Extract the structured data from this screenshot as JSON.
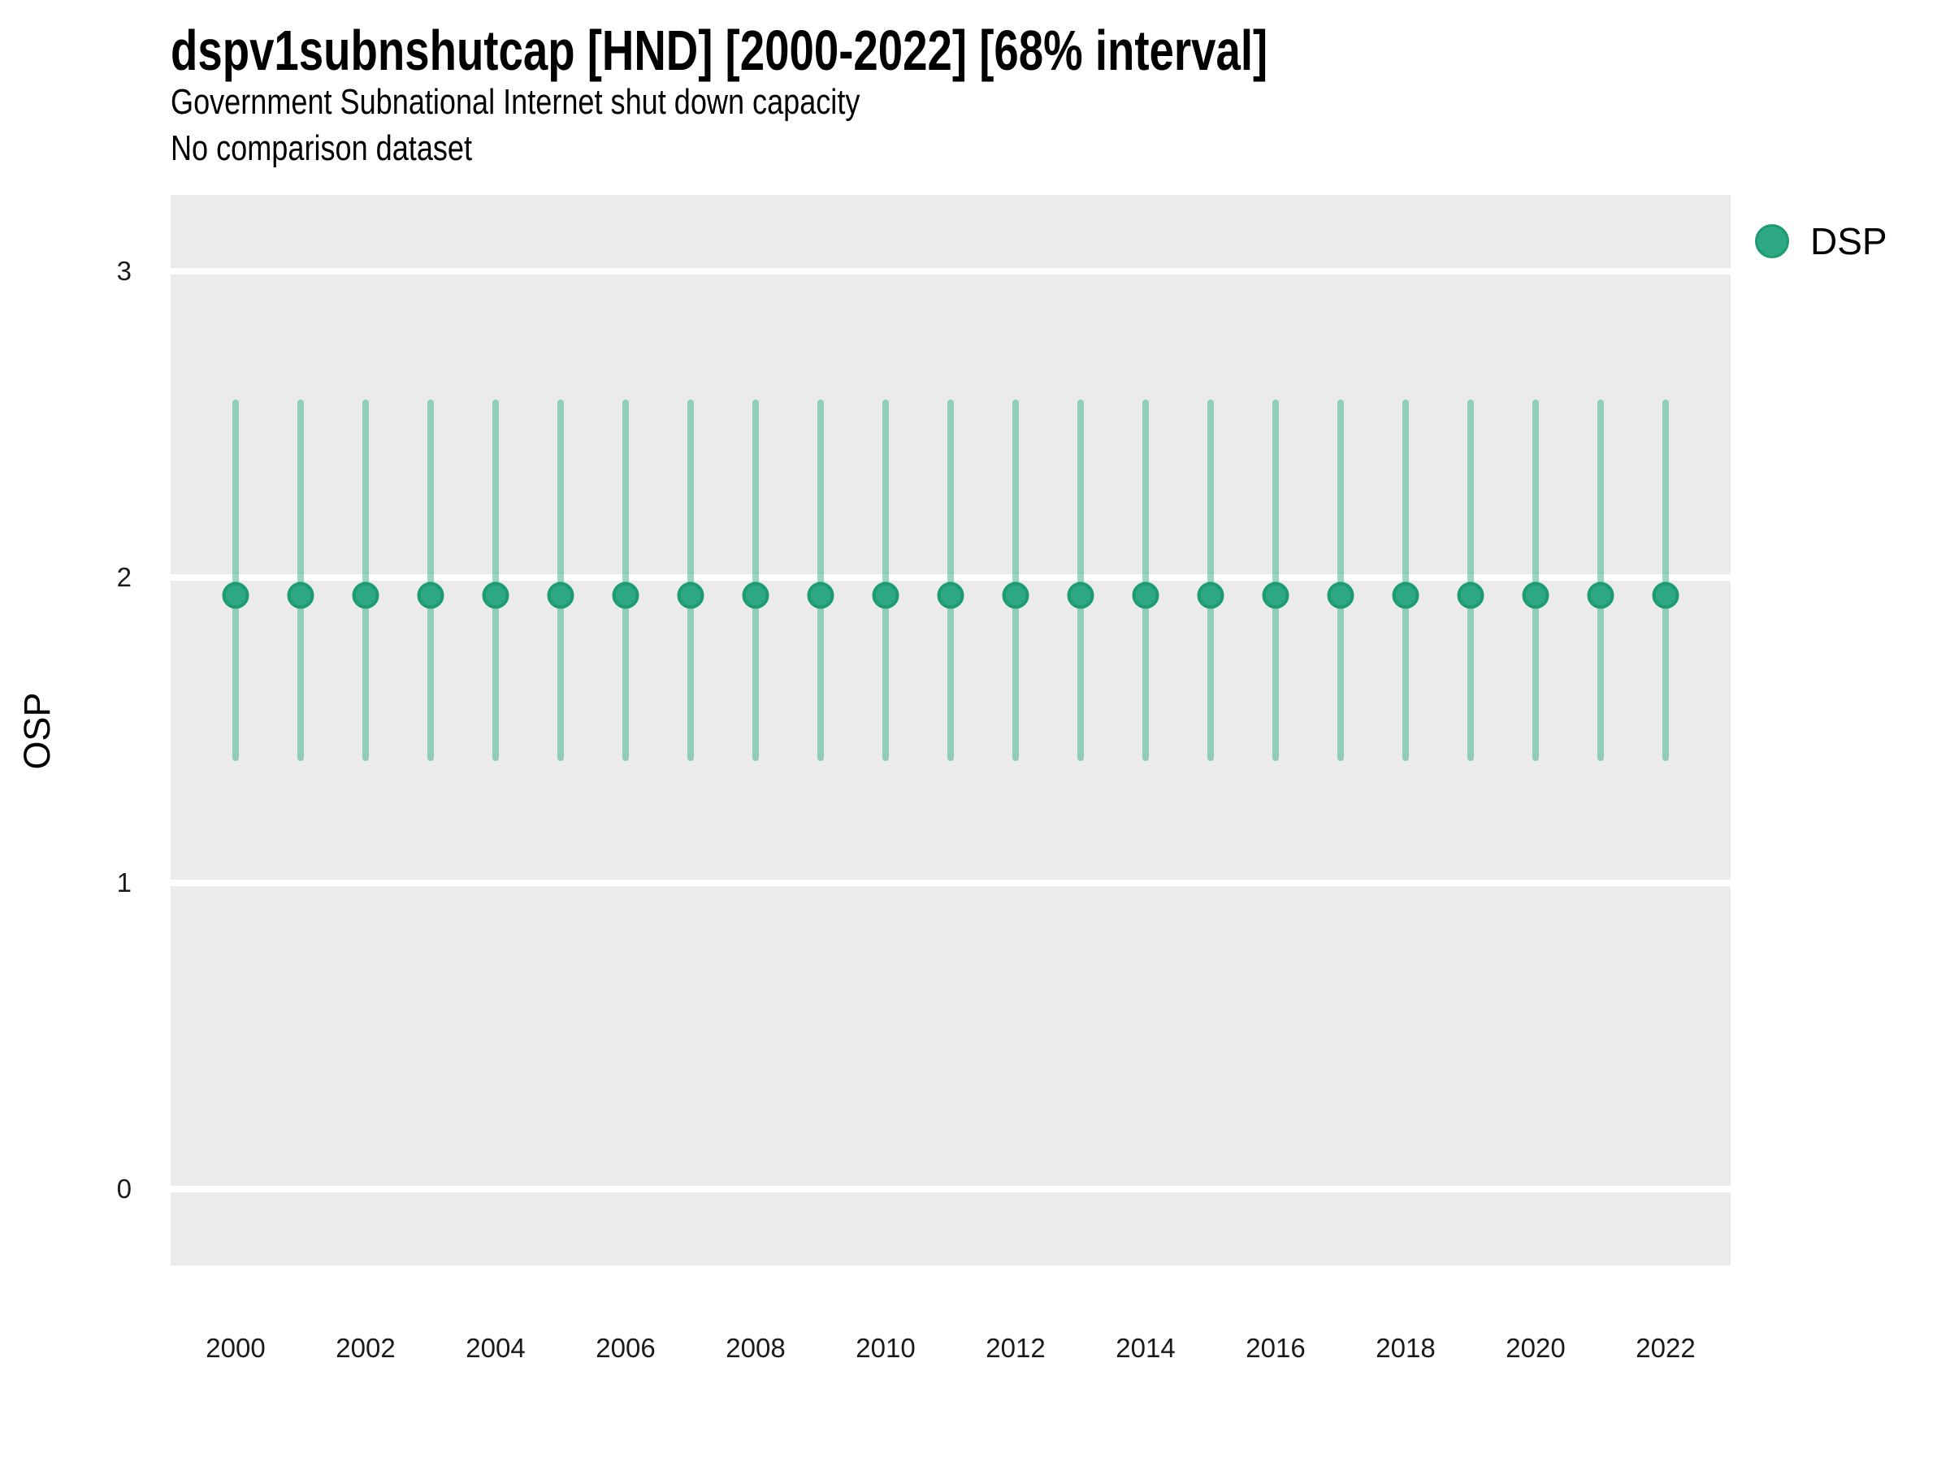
{
  "header": {
    "title": "dspv1subnshutcap [HND] [2000-2022] [68% interval]",
    "subtitle": "Government Subnational Internet shut down capacity",
    "subtitle2": "No comparison dataset"
  },
  "legend": {
    "label": "DSP"
  },
  "axes": {
    "y_label": "OSP"
  },
  "colors": {
    "panel_bg": "#EBEBEB",
    "gridline": "#FFFFFF",
    "point_fill": "#2DA882",
    "point_stroke": "#1E9B72",
    "interval_bar": "rgba(45,168,130,0.48)",
    "tick_text": "#1a1a1a"
  },
  "chart_data": {
    "type": "scatter",
    "title": "dspv1subnshutcap [HND] [2000-2022] [68% interval]",
    "subtitle": "Government Subnational Internet shut down capacity",
    "note": "No comparison dataset",
    "interval": "68%",
    "ylabel": "OSP",
    "xlabel": "",
    "ylim": [
      -0.25,
      3.25
    ],
    "yticks": [
      0,
      1,
      2,
      3
    ],
    "xticks": [
      2000,
      2002,
      2004,
      2006,
      2008,
      2010,
      2012,
      2014,
      2016,
      2018,
      2020,
      2022
    ],
    "grid": "major-horizontal-white-on-gray",
    "legend_position": "right-top",
    "x": [
      2000,
      2001,
      2002,
      2003,
      2004,
      2005,
      2006,
      2007,
      2008,
      2009,
      2010,
      2011,
      2012,
      2013,
      2014,
      2015,
      2016,
      2017,
      2018,
      2019,
      2020,
      2021,
      2022
    ],
    "series": [
      {
        "name": "DSP",
        "median": [
          1.94,
          1.94,
          1.94,
          1.94,
          1.94,
          1.94,
          1.94,
          1.94,
          1.94,
          1.94,
          1.94,
          1.94,
          1.94,
          1.94,
          1.94,
          1.94,
          1.94,
          1.94,
          1.94,
          1.94,
          1.94,
          1.94,
          1.94
        ],
        "lo": [
          1.4,
          1.4,
          1.4,
          1.4,
          1.4,
          1.4,
          1.4,
          1.4,
          1.4,
          1.4,
          1.4,
          1.4,
          1.4,
          1.4,
          1.4,
          1.4,
          1.4,
          1.4,
          1.4,
          1.4,
          1.4,
          1.4,
          1.4
        ],
        "hi": [
          2.58,
          2.58,
          2.58,
          2.58,
          2.58,
          2.58,
          2.58,
          2.58,
          2.58,
          2.58,
          2.58,
          2.58,
          2.58,
          2.58,
          2.58,
          2.58,
          2.58,
          2.58,
          2.58,
          2.58,
          2.58,
          2.58,
          2.58
        ]
      }
    ]
  }
}
